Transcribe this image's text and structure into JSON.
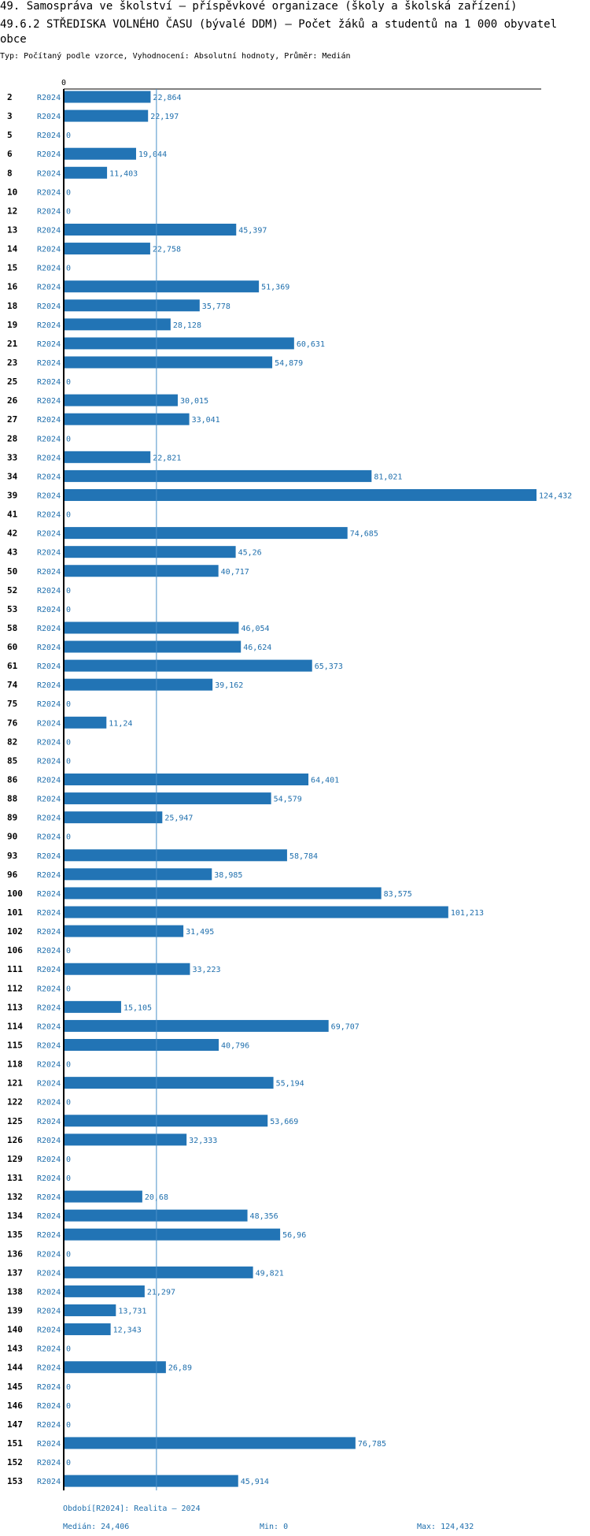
{
  "titles": {
    "line1": "49. Samospráva ve školství – příspěvkové organizace (školy a školská zařízení)",
    "line2": "49.6.2 STŘEDISKA VOLNÉHO ČASU (bývalé DDM) – Počet žáků a studentů na 1 000 obyvatel obce",
    "subtitle": "Typ: Počítaný podle vzorce, Vyhodnocení: Absolutní hodnoty, Průměr: Medián"
  },
  "colors": {
    "bar": "#2274b5",
    "value_text": "#1f6fad",
    "median_line": "#4a90c8",
    "axis": "#000000"
  },
  "chart_data": {
    "type": "bar",
    "orientation": "horizontal",
    "x_axis_zero_label": "0",
    "series_label": "R2024",
    "categories": [
      "2",
      "3",
      "5",
      "6",
      "8",
      "10",
      "12",
      "13",
      "14",
      "15",
      "16",
      "18",
      "19",
      "21",
      "23",
      "25",
      "26",
      "27",
      "28",
      "33",
      "34",
      "39",
      "41",
      "42",
      "43",
      "50",
      "52",
      "53",
      "58",
      "60",
      "61",
      "74",
      "75",
      "76",
      "82",
      "85",
      "86",
      "88",
      "89",
      "90",
      "93",
      "96",
      "100",
      "101",
      "102",
      "106",
      "111",
      "112",
      "113",
      "114",
      "115",
      "118",
      "121",
      "122",
      "125",
      "126",
      "129",
      "131",
      "132",
      "134",
      "135",
      "136",
      "137",
      "138",
      "139",
      "140",
      "143",
      "144",
      "145",
      "146",
      "147",
      "151",
      "152",
      "153"
    ],
    "values": [
      22.864,
      22.197,
      0,
      19.044,
      11.403,
      0,
      0,
      45.397,
      22.758,
      0,
      51.369,
      35.778,
      28.128,
      60.631,
      54.879,
      0,
      30.015,
      33.041,
      0,
      22.821,
      81.021,
      124.432,
      0,
      74.685,
      45.26,
      40.717,
      0,
      0,
      46.054,
      46.624,
      65.373,
      39.162,
      0,
      11.24,
      0,
      0,
      64.401,
      54.579,
      25.947,
      0,
      58.784,
      38.985,
      83.575,
      101.213,
      31.495,
      0,
      33.223,
      0,
      15.105,
      69.707,
      40.796,
      0,
      55.194,
      0,
      53.669,
      32.333,
      0,
      0,
      20.68,
      48.356,
      56.96,
      0,
      49.821,
      21.297,
      13.731,
      12.343,
      0,
      26.89,
      0,
      0,
      0,
      76.785,
      0,
      45.914
    ],
    "value_labels": [
      "22,864",
      "22,197",
      "0",
      "19,044",
      "11,403",
      "0",
      "0",
      "45,397",
      "22,758",
      "0",
      "51,369",
      "35,778",
      "28,128",
      "60,631",
      "54,879",
      "0",
      "30,015",
      "33,041",
      "0",
      "22,821",
      "81,021",
      "124,432",
      "0",
      "74,685",
      "45,26",
      "40,717",
      "0",
      "0",
      "46,054",
      "46,624",
      "65,373",
      "39,162",
      "0",
      "11,24",
      "0",
      "0",
      "64,401",
      "54,579",
      "25,947",
      "0",
      "58,784",
      "38,985",
      "83,575",
      "101,213",
      "31,495",
      "0",
      "33,223",
      "0",
      "15,105",
      "69,707",
      "40,796",
      "0",
      "55,194",
      "0",
      "53,669",
      "32,333",
      "0",
      "0",
      "20,68",
      "48,356",
      "56,96",
      "0",
      "49,821",
      "21,297",
      "13,731",
      "12,343",
      "0",
      "26,89",
      "0",
      "0",
      "0",
      "76,785",
      "0",
      "45,914"
    ],
    "median": 24.406,
    "min": 0,
    "max": 124.432,
    "xlim": [
      0,
      124.432
    ]
  },
  "footer": {
    "period": "Období[R2024]: Realita – 2024",
    "median": "Medián: 24,406",
    "min": "Min: 0",
    "max": "Max: 124,432"
  }
}
